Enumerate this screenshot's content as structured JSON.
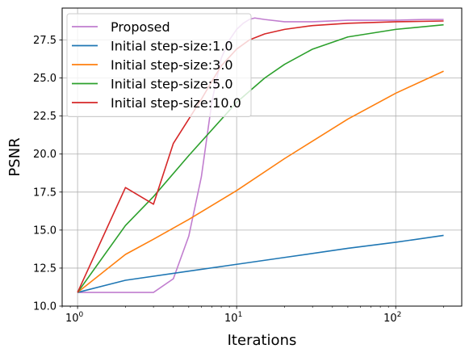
{
  "chart_data": {
    "type": "line",
    "xlabel": "Iterations",
    "ylabel": "PSNR",
    "x_scale": "log",
    "xlim": [
      0.8,
      260
    ],
    "ylim": [
      10.0,
      29.6
    ],
    "grid": true,
    "legend_position": "upper-left",
    "x_ticks": [
      {
        "value": 1,
        "base": "10",
        "exp": "0"
      },
      {
        "value": 10,
        "base": "10",
        "exp": "1"
      },
      {
        "value": 100,
        "base": "10",
        "exp": "2"
      }
    ],
    "y_ticks": [
      {
        "value": 10.0,
        "label": "10.0"
      },
      {
        "value": 12.5,
        "label": "12.5"
      },
      {
        "value": 15.0,
        "label": "15.0"
      },
      {
        "value": 17.5,
        "label": "17.5"
      },
      {
        "value": 20.0,
        "label": "20.0"
      },
      {
        "value": 22.5,
        "label": "22.5"
      },
      {
        "value": 25.0,
        "label": "25.0"
      },
      {
        "value": 27.5,
        "label": "27.5"
      }
    ],
    "series": [
      {
        "name": "Proposed",
        "color": "#c17ecf",
        "x": [
          1,
          2,
          3,
          4,
          5,
          6,
          7,
          8,
          9,
          10,
          11,
          12,
          13,
          15,
          20,
          30,
          50,
          100,
          150,
          200
        ],
        "y": [
          10.9,
          10.9,
          10.9,
          11.8,
          14.6,
          18.5,
          23.5,
          26.3,
          27.5,
          28.2,
          28.6,
          28.85,
          28.95,
          28.85,
          28.7,
          28.7,
          28.8,
          28.8,
          28.85,
          28.85
        ]
      },
      {
        "name": "Initial step-size:1.0",
        "color": "#1f77b4",
        "x": [
          1,
          2,
          5,
          10,
          20,
          50,
          100,
          200
        ],
        "y": [
          10.9,
          11.7,
          12.3,
          12.75,
          13.2,
          13.8,
          14.2,
          14.65
        ]
      },
      {
        "name": "Initial step-size:3.0",
        "color": "#ff7f0e",
        "x": [
          1,
          2,
          3,
          5,
          10,
          20,
          50,
          100,
          200
        ],
        "y": [
          10.9,
          13.4,
          14.4,
          15.7,
          17.6,
          19.7,
          22.3,
          24.0,
          25.45
        ]
      },
      {
        "name": "Initial step-size:5.0",
        "color": "#2ca02c",
        "x": [
          1,
          2,
          3,
          5,
          10,
          15,
          20,
          30,
          50,
          100,
          200
        ],
        "y": [
          10.9,
          15.3,
          17.2,
          19.9,
          23.4,
          25.0,
          25.9,
          26.9,
          27.7,
          28.2,
          28.5
        ]
      },
      {
        "name": "Initial step-size:10.0",
        "color": "#d62728",
        "x": [
          1,
          2,
          3,
          4,
          5,
          6,
          7,
          8,
          10,
          12,
          15,
          20,
          30,
          50,
          100,
          200
        ],
        "y": [
          10.9,
          17.8,
          16.7,
          20.7,
          22.3,
          23.6,
          24.8,
          25.8,
          26.9,
          27.5,
          27.9,
          28.2,
          28.45,
          28.6,
          28.7,
          28.75
        ]
      }
    ]
  }
}
